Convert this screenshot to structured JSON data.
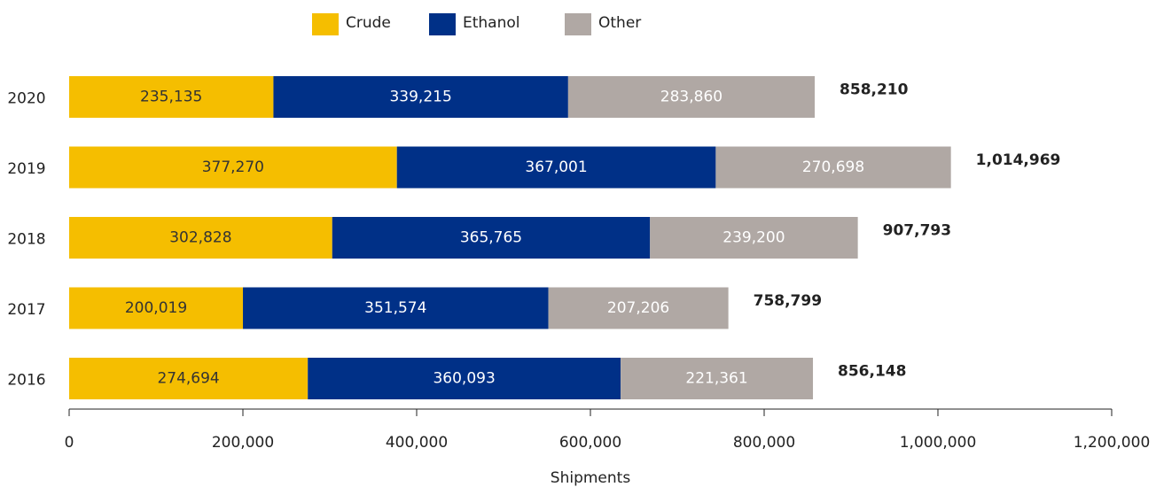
{
  "chart_data": {
    "type": "stacked-barh",
    "categories": [
      "2020",
      "2019",
      "2018",
      "2017",
      "2016"
    ],
    "series": [
      {
        "name": "Crude",
        "color": "#f5be00",
        "label_color": "#333333",
        "values": [
          235135,
          377270,
          302828,
          200019,
          274694
        ],
        "value_labels": [
          "235,135",
          "377,270",
          "302,828",
          "200,019",
          "274,694"
        ]
      },
      {
        "name": "Ethanol",
        "color": "#003087",
        "label_color": "#ffffff",
        "values": [
          339215,
          367001,
          365765,
          351574,
          360093
        ],
        "value_labels": [
          "339,215",
          "367,001",
          "365,765",
          "351,574",
          "360,093"
        ]
      },
      {
        "name": "Other",
        "color": "#b0a8a4",
        "label_color": "#ffffff",
        "values": [
          283860,
          270698,
          239200,
          207206,
          221361
        ],
        "value_labels": [
          "283,860",
          "270,698",
          "239,200",
          "207,206",
          "221,361"
        ]
      }
    ],
    "totals": {
      "values": [
        858210,
        1014969,
        907793,
        758799,
        856148
      ],
      "value_labels": [
        "858,210",
        "1,014,969",
        "907,793",
        "758,799",
        "856,148"
      ]
    },
    "xlabel": "Shipments",
    "xlim": [
      0,
      1200000
    ],
    "xticks": [
      0,
      {
        "value": 200000,
        "label": "200,000"
      },
      {
        "value": 400000,
        "label": "400,000"
      },
      {
        "value": 600000,
        "label": "600,000"
      },
      {
        "value": 800000,
        "label": "800,000"
      },
      {
        "value": 1000000,
        "label": "1,000,000"
      },
      {
        "value": 1200000,
        "label": "1,200,000"
      }
    ],
    "legend": "top"
  }
}
